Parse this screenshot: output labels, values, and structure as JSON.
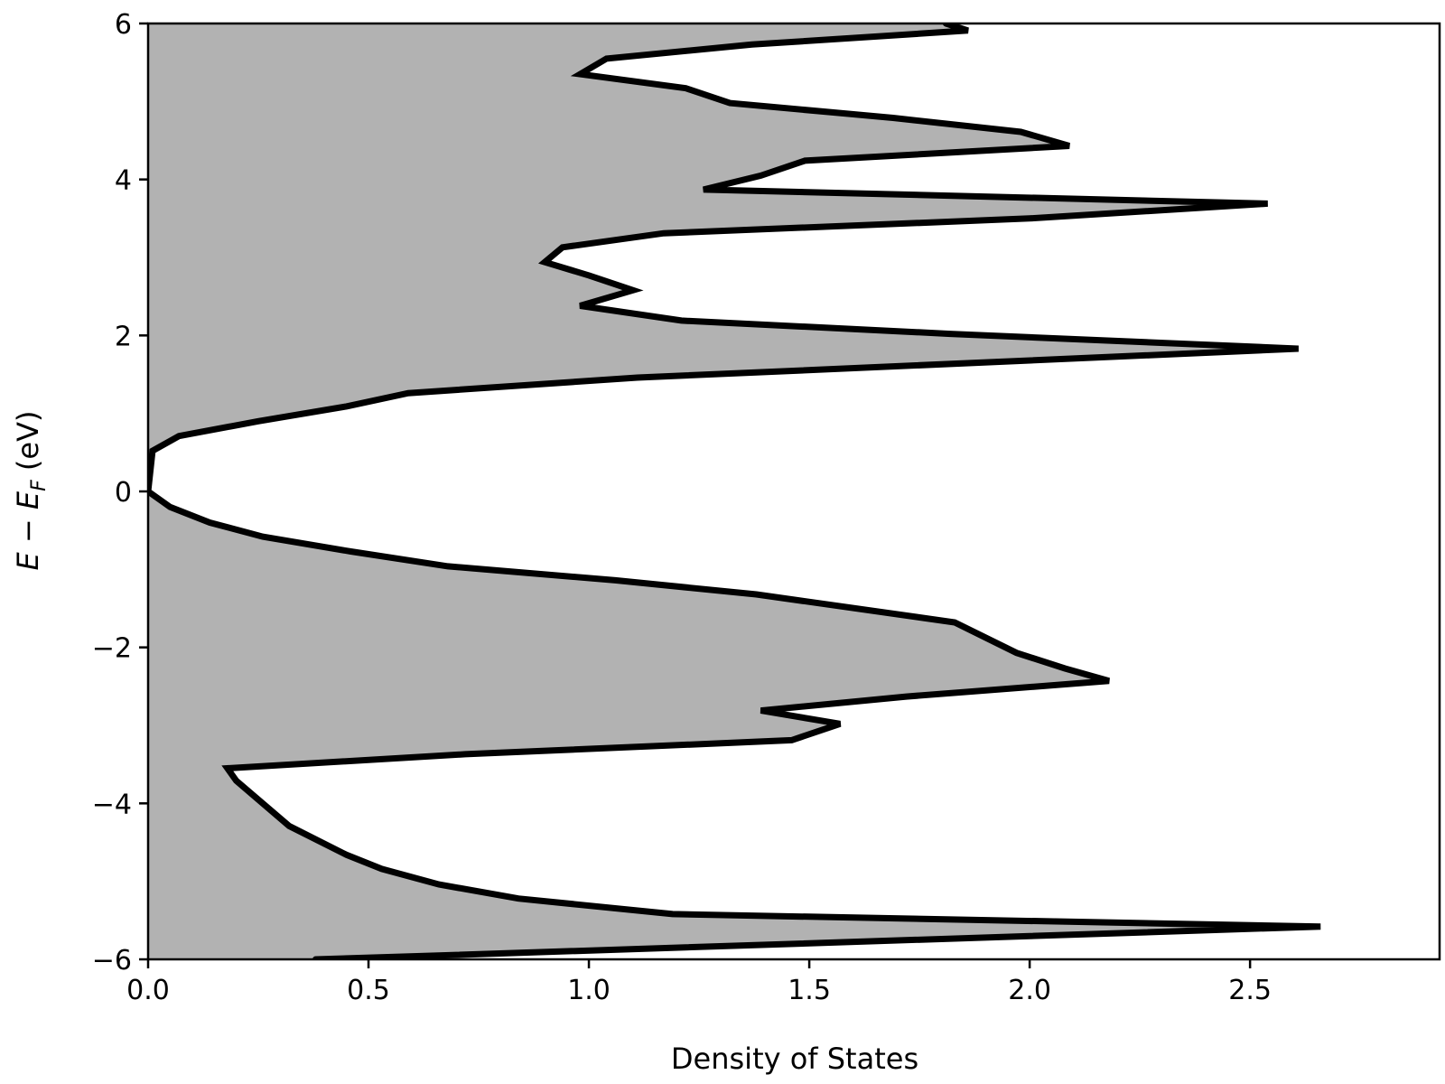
{
  "chart_data": {
    "type": "area",
    "orientation": "horizontal",
    "xlabel": "Density of States",
    "ylabel": "E − E_F (eV)",
    "ylabel_parts": {
      "E1": "E",
      "minus": " − ",
      "E2": "E",
      "sub": "F",
      "unit": " (eV)"
    },
    "xlim": [
      0,
      2.93
    ],
    "ylim": [
      -6,
      6
    ],
    "xticks": [
      0.0,
      0.5,
      1.0,
      1.5,
      2.0,
      2.5
    ],
    "xtick_labels": [
      "0.0",
      "0.5",
      "1.0",
      "1.5",
      "2.0",
      "2.5"
    ],
    "yticks": [
      6,
      4,
      2,
      0,
      -2,
      -4,
      -6
    ],
    "ytick_labels": [
      "6",
      "4",
      "2",
      "0",
      "−2",
      "−4",
      "−6"
    ],
    "grid": false,
    "fill_color": "#b2b2b2",
    "line_color": "#000000",
    "series": [
      {
        "points": [
          [
            0.38,
            -6.0
          ],
          [
            0.61,
            -5.96
          ],
          [
            2.66,
            -5.58
          ],
          [
            1.19,
            -5.42
          ],
          [
            0.84,
            -5.22
          ],
          [
            0.66,
            -5.04
          ],
          [
            0.53,
            -4.84
          ],
          [
            0.45,
            -4.66
          ],
          [
            0.32,
            -4.29
          ],
          [
            0.2,
            -3.71
          ],
          [
            0.18,
            -3.55
          ],
          [
            0.72,
            -3.37
          ],
          [
            1.46,
            -3.19
          ],
          [
            1.57,
            -2.98
          ],
          [
            1.39,
            -2.81
          ],
          [
            1.72,
            -2.63
          ],
          [
            2.18,
            -2.43
          ],
          [
            2.08,
            -2.27
          ],
          [
            1.97,
            -2.07
          ],
          [
            1.83,
            -1.68
          ],
          [
            1.38,
            -1.32
          ],
          [
            1.06,
            -1.14
          ],
          [
            0.68,
            -0.96
          ],
          [
            0.46,
            -0.77
          ],
          [
            0.26,
            -0.58
          ],
          [
            0.14,
            -0.4
          ],
          [
            0.05,
            -0.2
          ],
          [
            0.0,
            0.0
          ],
          [
            0.01,
            0.52
          ],
          [
            0.07,
            0.71
          ],
          [
            0.25,
            0.9
          ],
          [
            0.45,
            1.09
          ],
          [
            0.59,
            1.26
          ],
          [
            1.11,
            1.46
          ],
          [
            2.61,
            1.83
          ],
          [
            1.82,
            2.02
          ],
          [
            1.21,
            2.19
          ],
          [
            0.98,
            2.38
          ],
          [
            1.1,
            2.58
          ],
          [
            1.0,
            2.77
          ],
          [
            0.9,
            2.94
          ],
          [
            0.94,
            3.13
          ],
          [
            1.17,
            3.31
          ],
          [
            2.0,
            3.5
          ],
          [
            2.54,
            3.69
          ],
          [
            1.26,
            3.87
          ],
          [
            1.39,
            4.05
          ],
          [
            1.49,
            4.24
          ],
          [
            2.09,
            4.43
          ],
          [
            1.98,
            4.61
          ],
          [
            1.69,
            4.79
          ],
          [
            1.32,
            4.98
          ],
          [
            1.22,
            5.17
          ],
          [
            0.98,
            5.35
          ],
          [
            1.04,
            5.55
          ],
          [
            1.37,
            5.73
          ],
          [
            1.86,
            5.91
          ],
          [
            1.81,
            6.0
          ]
        ]
      }
    ]
  }
}
